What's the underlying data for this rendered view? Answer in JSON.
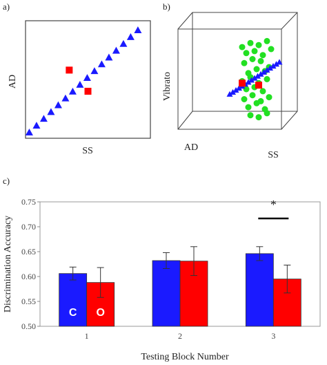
{
  "panels": {
    "a": {
      "label": "a)"
    },
    "b": {
      "label": "b)"
    },
    "c": {
      "label": "c)"
    }
  },
  "colors": {
    "blue": "#1a1aff",
    "red": "#ff0000",
    "green": "#22e022",
    "axis": "#888888",
    "frame": "#444444"
  },
  "chart_data": [
    {
      "type": "scatter",
      "panel": "a",
      "xlabel": "SS",
      "ylabel": "AD",
      "series": [
        {
          "marker": "triangle",
          "color": "#1a1aff",
          "x": [
            0.03,
            0.088,
            0.146,
            0.204,
            0.262,
            0.32,
            0.378,
            0.436,
            0.494,
            0.552,
            0.61,
            0.668,
            0.726,
            0.784,
            0.842,
            0.9
          ],
          "y": [
            0.05,
            0.108,
            0.166,
            0.224,
            0.282,
            0.34,
            0.398,
            0.456,
            0.514,
            0.572,
            0.63,
            0.688,
            0.746,
            0.804,
            0.862,
            0.92
          ]
        },
        {
          "marker": "square",
          "color": "#ff0000",
          "x": [
            0.35,
            0.5
          ],
          "y": [
            0.58,
            0.4
          ]
        }
      ]
    },
    {
      "type": "scatter",
      "panel": "b",
      "xlabel": "SS",
      "ylabel": "Vibrato",
      "zlabel": "AD",
      "series": [
        {
          "marker": "circle",
          "color": "#22e022",
          "x": [
            0.62,
            0.7,
            0.78,
            0.86,
            0.66,
            0.74,
            0.82,
            0.9,
            0.64,
            0.72,
            0.8,
            0.88,
            0.68,
            0.76,
            0.84,
            0.62,
            0.7,
            0.78,
            0.86,
            0.66,
            0.74,
            0.82,
            0.64,
            0.72,
            0.8,
            0.88,
            0.68,
            0.76,
            0.84,
            0.7,
            0.78,
            0.86
          ],
          "y": [
            0.82,
            0.86,
            0.84,
            0.88,
            0.76,
            0.78,
            0.74,
            0.8,
            0.66,
            0.7,
            0.68,
            0.62,
            0.56,
            0.6,
            0.58,
            0.48,
            0.52,
            0.46,
            0.5,
            0.4,
            0.42,
            0.38,
            0.3,
            0.34,
            0.28,
            0.32,
            0.22,
            0.26,
            0.2,
            0.14,
            0.12,
            0.16
          ]
        },
        {
          "marker": "triangle",
          "color": "#1a1aff",
          "x": [
            0.5,
            0.53,
            0.56,
            0.59,
            0.62,
            0.65,
            0.68,
            0.71,
            0.74,
            0.77,
            0.8,
            0.83,
            0.86,
            0.89,
            0.92,
            0.95,
            0.98
          ],
          "y": [
            0.35,
            0.37,
            0.39,
            0.41,
            0.43,
            0.45,
            0.47,
            0.49,
            0.51,
            0.53,
            0.55,
            0.57,
            0.59,
            0.61,
            0.63,
            0.65,
            0.67
          ]
        },
        {
          "marker": "square",
          "color": "#ff0000",
          "x": [
            0.62,
            0.78
          ],
          "y": [
            0.46,
            0.44
          ]
        }
      ]
    },
    {
      "type": "bar",
      "panel": "c",
      "xlabel": "Testing Block Number",
      "ylabel": "Discrimination Accuracy",
      "categories": [
        "1",
        "2",
        "3"
      ],
      "ylim": [
        0.5,
        0.75
      ],
      "yticks": [
        "0.50",
        "0.55",
        "0.60",
        "0.65",
        "0.70",
        "0.75"
      ],
      "series": [
        {
          "name": "C",
          "color": "#1a1aff",
          "values": [
            0.606,
            0.632,
            0.646
          ],
          "errors": [
            0.013,
            0.016,
            0.014
          ]
        },
        {
          "name": "O",
          "color": "#ff0000",
          "values": [
            0.588,
            0.631,
            0.595
          ],
          "errors": [
            0.03,
            0.029,
            0.028
          ]
        }
      ],
      "significance": {
        "category": "3",
        "symbol": "*"
      }
    }
  ]
}
